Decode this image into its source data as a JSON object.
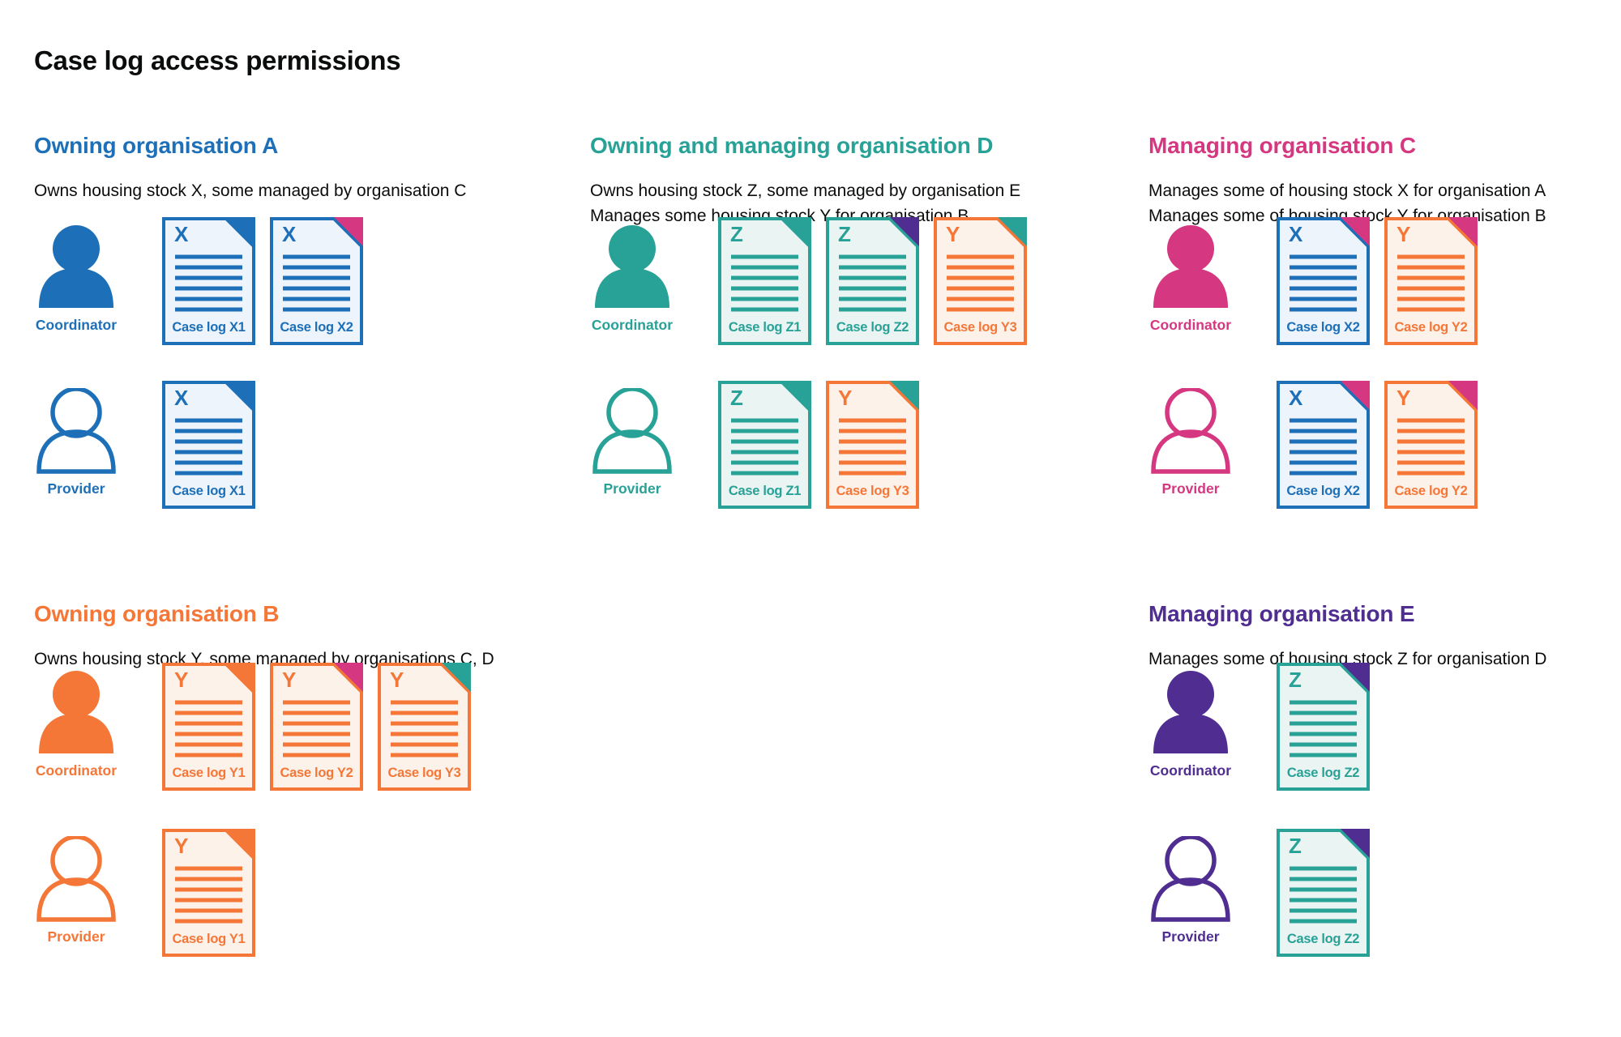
{
  "title": "Case log access permissions",
  "palette": {
    "blue": "#1d70b8",
    "teal": "#28a197",
    "pink": "#d53880",
    "orange": "#f47738",
    "purple": "#4f2d91",
    "text": "#0b0c0c",
    "blue_tint": "#eef4fb",
    "teal_tint": "#eaf5f3",
    "orange_tint": "#fdf2ea"
  },
  "sections": [
    {
      "id": "org-a",
      "color": "blue",
      "position": "top-left",
      "title": "Owning organisation A",
      "description": [
        "Owns housing stock X, some managed by organisation C"
      ],
      "rows": [
        {
          "role": "Coordinator",
          "person_style": "filled",
          "docs": [
            {
              "letter": "X",
              "caption": "Case log X1",
              "color": "blue",
              "fold": "blue"
            },
            {
              "letter": "X",
              "caption": "Case log X2",
              "color": "blue",
              "fold": "pink"
            }
          ]
        },
        {
          "role": "Provider",
          "person_style": "outline",
          "docs": [
            {
              "letter": "X",
              "caption": "Case log X1",
              "color": "blue",
              "fold": "blue"
            }
          ]
        }
      ]
    },
    {
      "id": "org-d",
      "color": "teal",
      "position": "top-middle",
      "title": "Owning and managing organisation D",
      "description": [
        "Owns housing stock Z, some managed by organisation E",
        "Manages some housing stock Y for organisation B"
      ],
      "rows": [
        {
          "role": "Coordinator",
          "person_style": "filled",
          "docs": [
            {
              "letter": "Z",
              "caption": "Case log Z1",
              "color": "teal",
              "fold": "teal"
            },
            {
              "letter": "Z",
              "caption": "Case log Z2",
              "color": "teal",
              "fold": "purple"
            },
            {
              "letter": "Y",
              "caption": "Case log Y3",
              "color": "orange",
              "fold": "teal"
            }
          ]
        },
        {
          "role": "Provider",
          "person_style": "outline",
          "docs": [
            {
              "letter": "Z",
              "caption": "Case log Z1",
              "color": "teal",
              "fold": "teal"
            },
            {
              "letter": "Y",
              "caption": "Case log Y3",
              "color": "orange",
              "fold": "teal"
            }
          ]
        }
      ]
    },
    {
      "id": "org-c",
      "color": "pink",
      "position": "top-right",
      "title": "Managing organisation C",
      "description": [
        "Manages some of housing stock X for organisation A",
        "Manages some of housing stock Y for organisation B"
      ],
      "rows": [
        {
          "role": "Coordinator",
          "person_style": "filled",
          "docs": [
            {
              "letter": "X",
              "caption": "Case log X2",
              "color": "blue",
              "fold": "pink"
            },
            {
              "letter": "Y",
              "caption": "Case log Y2",
              "color": "orange",
              "fold": "pink"
            }
          ]
        },
        {
          "role": "Provider",
          "person_style": "outline",
          "docs": [
            {
              "letter": "X",
              "caption": "Case log X2",
              "color": "blue",
              "fold": "pink"
            },
            {
              "letter": "Y",
              "caption": "Case log Y2",
              "color": "orange",
              "fold": "pink"
            }
          ]
        }
      ]
    },
    {
      "id": "org-b",
      "color": "orange",
      "position": "bottom-left",
      "title": "Owning organisation B",
      "description": [
        "Owns housing stock Y, some managed by organisations C, D"
      ],
      "rows": [
        {
          "role": "Coordinator",
          "person_style": "filled",
          "docs": [
            {
              "letter": "Y",
              "caption": "Case log Y1",
              "color": "orange",
              "fold": "orange"
            },
            {
              "letter": "Y",
              "caption": "Case log Y2",
              "color": "orange",
              "fold": "pink"
            },
            {
              "letter": "Y",
              "caption": "Case log Y3",
              "color": "orange",
              "fold": "teal"
            }
          ]
        },
        {
          "role": "Provider",
          "person_style": "outline",
          "docs": [
            {
              "letter": "Y",
              "caption": "Case log Y1",
              "color": "orange",
              "fold": "orange"
            }
          ]
        }
      ]
    },
    {
      "id": "org-e",
      "color": "purple",
      "position": "bottom-right",
      "title": "Managing organisation E",
      "description": [
        "Manages some of housing stock Z for organisation D"
      ],
      "rows": [
        {
          "role": "Coordinator",
          "person_style": "filled",
          "docs": [
            {
              "letter": "Z",
              "caption": "Case log Z2",
              "color": "teal",
              "fold": "purple"
            }
          ]
        },
        {
          "role": "Provider",
          "person_style": "outline",
          "docs": [
            {
              "letter": "Z",
              "caption": "Case log Z2",
              "color": "teal",
              "fold": "purple"
            }
          ]
        }
      ]
    }
  ]
}
